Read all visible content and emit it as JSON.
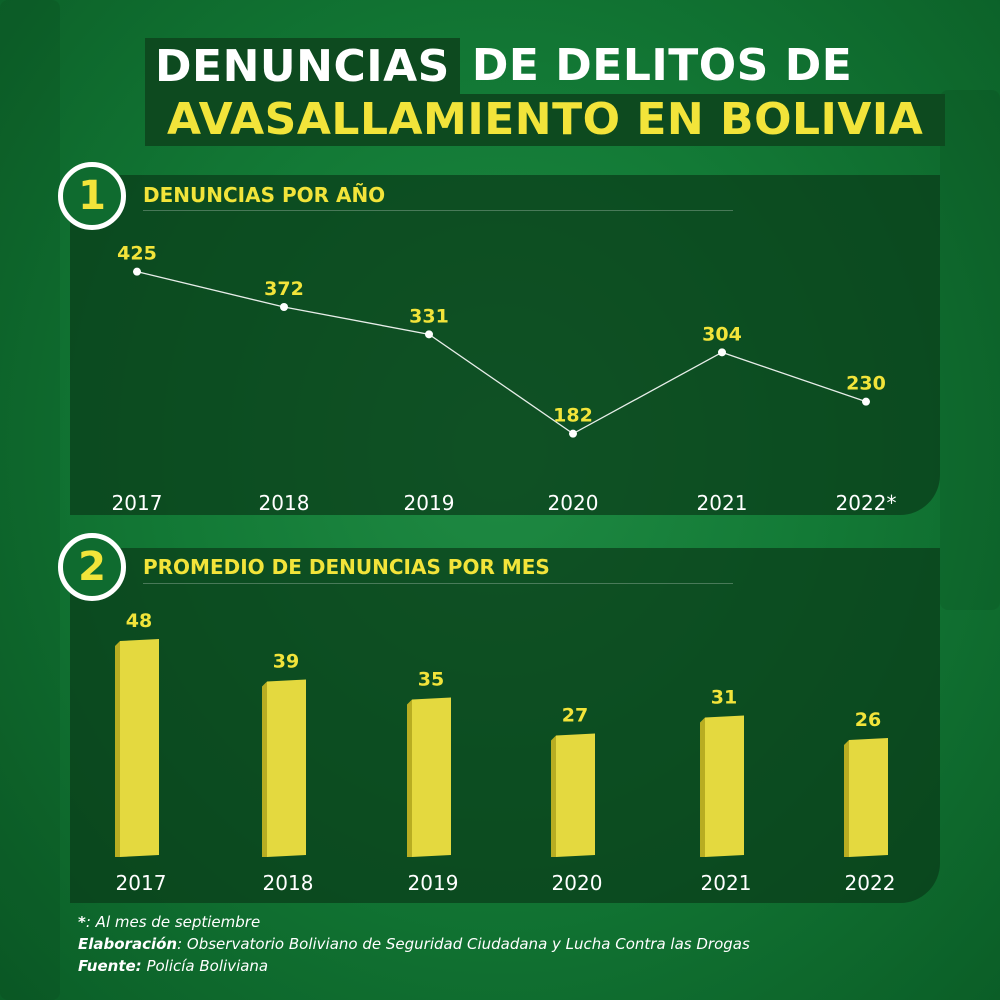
{
  "title": {
    "part1": "DENUNCIAS",
    "part2": "DE DELITOS DE",
    "line2": "AVASALLAMIENTO EN BOLIVIA"
  },
  "sections": [
    {
      "number": "1",
      "title": "DENUNCIAS POR AÑO"
    },
    {
      "number": "2",
      "title": "PROMEDIO DE DENUNCIAS POR MES"
    }
  ],
  "footer": {
    "note_mark": "*",
    "note_text": ": Al mes de septiembre",
    "elab_label": "Elaboración",
    "elab_text": ": Observatorio Boliviano de Seguridad Ciudadana y Lucha Contra las Drogas",
    "source_label": "Fuente:",
    "source_text": " Policía Boliviana"
  },
  "colors": {
    "accent_yellow": "#f2e43a",
    "bar_yellow": "#e4d93f",
    "bar_shade": "#b8ad22",
    "line": "#ffffff"
  },
  "chart_data": [
    {
      "type": "line",
      "categories": [
        "2017",
        "2018",
        "2019",
        "2020",
        "2021",
        "2022*"
      ],
      "values": [
        425,
        372,
        331,
        182,
        304,
        230
      ],
      "ylim": [
        150,
        450
      ],
      "grid": false,
      "legend": "none"
    },
    {
      "type": "bar",
      "categories": [
        "2017",
        "2018",
        "2019",
        "2020",
        "2021",
        "2022"
      ],
      "values": [
        48,
        39,
        35,
        27,
        31,
        26
      ],
      "ylim": [
        0,
        50
      ],
      "grid": false,
      "legend": "none"
    }
  ]
}
